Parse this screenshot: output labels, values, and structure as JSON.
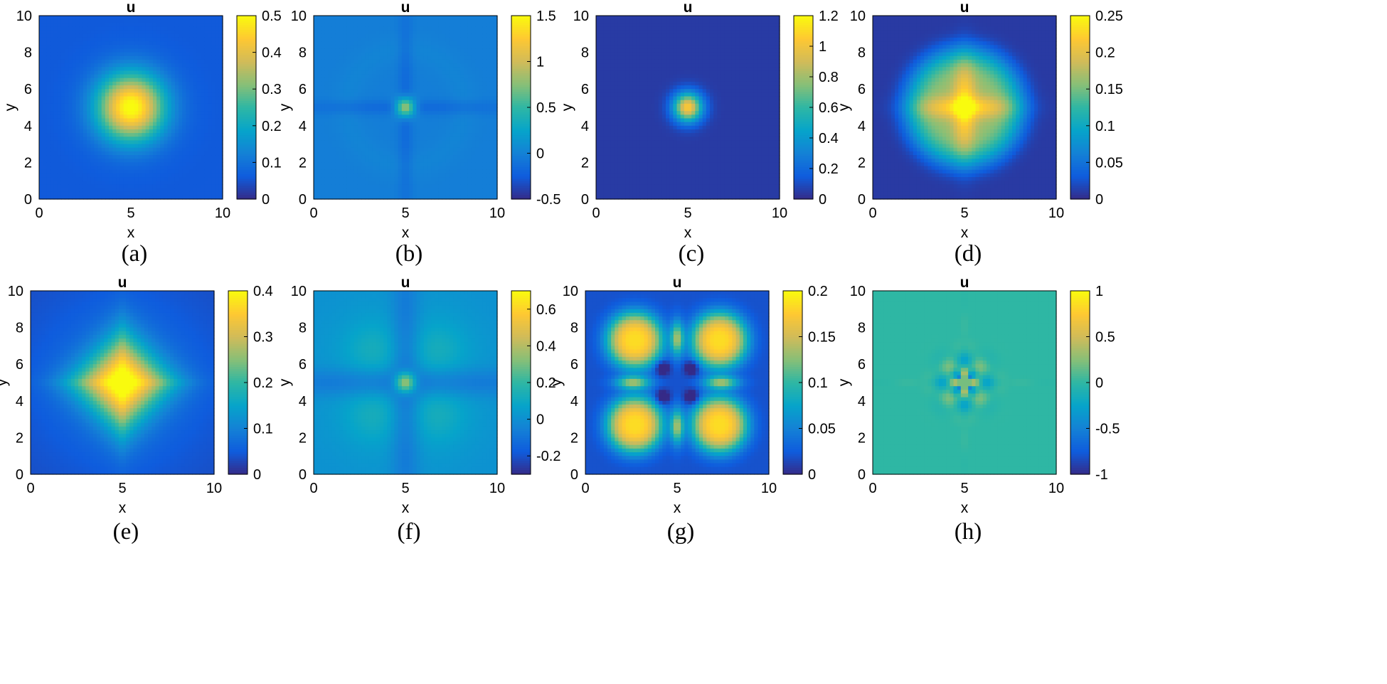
{
  "chart_data": [
    {
      "id": "a",
      "type": "heatmap",
      "pattern": "gaussian",
      "title": "u",
      "xlabel": "x",
      "ylabel": "y",
      "caption": "(a)",
      "xlim": [
        0,
        10
      ],
      "ylim": [
        0,
        10
      ],
      "xticks": [
        "0",
        "5",
        "10"
      ],
      "yticks": [
        "0",
        "2",
        "4",
        "6",
        "8",
        "10"
      ],
      "colorbar": {
        "min": 0,
        "max": 0.5,
        "ticks": [
          "0",
          "0.1",
          "0.2",
          "0.3",
          "0.4",
          "0.5"
        ]
      },
      "background": 0.06,
      "peak": 0.45,
      "width": 1.3
    },
    {
      "id": "b",
      "type": "heatmap",
      "pattern": "cross",
      "title": "u",
      "xlabel": "x",
      "ylabel": "y",
      "caption": "(b)",
      "xlim": [
        0,
        10
      ],
      "ylim": [
        0,
        10
      ],
      "xticks": [
        "0",
        "5",
        "10"
      ],
      "yticks": [
        "0",
        "2",
        "4",
        "6",
        "8",
        "10"
      ],
      "colorbar": {
        "min": -0.5,
        "max": 1.5,
        "ticks": [
          "-0.5",
          "0",
          "0.5",
          "1",
          "1.5"
        ]
      },
      "background": -0.02,
      "peak": 1.1,
      "width": 0.35,
      "cross_depth": -0.28,
      "cross_width": 0.28
    },
    {
      "id": "c",
      "type": "heatmap",
      "pattern": "gaussian",
      "title": "u",
      "xlabel": "x",
      "ylabel": "y",
      "caption": "(c)",
      "xlim": [
        0,
        10
      ],
      "ylim": [
        0,
        10
      ],
      "xticks": [
        "0",
        "5",
        "10"
      ],
      "yticks": [
        "0",
        "2",
        "4",
        "6",
        "8",
        "10"
      ],
      "colorbar": {
        "min": 0,
        "max": 1.2,
        "ticks": [
          "0",
          "0.2",
          "0.4",
          "0.6",
          "0.8",
          "1",
          "1.2"
        ]
      },
      "background": 0.05,
      "peak": 1.0,
      "width": 0.55
    },
    {
      "id": "d",
      "type": "heatmap",
      "pattern": "star",
      "title": "u",
      "xlabel": "x",
      "ylabel": "y",
      "caption": "(d)",
      "xlim": [
        0,
        10
      ],
      "ylim": [
        0,
        10
      ],
      "xticks": [
        "0",
        "5",
        "10"
      ],
      "yticks": [
        "0",
        "2",
        "4",
        "6",
        "8",
        "10"
      ],
      "colorbar": {
        "min": 0,
        "max": 0.25,
        "ticks": [
          "0",
          "0.05",
          "0.1",
          "0.15",
          "0.2",
          "0.25"
        ]
      },
      "background": 0.01,
      "peak": 0.215,
      "width": 3.2
    },
    {
      "id": "e",
      "type": "heatmap",
      "pattern": "diamond",
      "title": "u",
      "xlabel": "x",
      "ylabel": "y",
      "caption": "(e)",
      "xlim": [
        0,
        10
      ],
      "ylim": [
        0,
        10
      ],
      "xticks": [
        "0",
        "5",
        "10"
      ],
      "yticks": [
        "0",
        "2",
        "4",
        "6",
        "8",
        "10"
      ],
      "colorbar": {
        "min": 0,
        "max": 0.4,
        "ticks": [
          "0",
          "0.1",
          "0.2",
          "0.3",
          "0.4"
        ]
      },
      "background": 0.03,
      "peak": 0.36,
      "width": 1.9
    },
    {
      "id": "f",
      "type": "heatmap",
      "pattern": "cross-lobes",
      "title": "u",
      "xlabel": "x",
      "ylabel": "y",
      "caption": "(f)",
      "xlim": [
        0,
        10
      ],
      "ylim": [
        0,
        10
      ],
      "xticks": [
        "0",
        "5",
        "10"
      ],
      "yticks": [
        "0",
        "2",
        "4",
        "6",
        "8",
        "10"
      ],
      "colorbar": {
        "min": -0.3,
        "max": 0.7,
        "ticks": [
          "-0.2",
          "0",
          "0.2",
          "0.4",
          "0.6"
        ]
      },
      "background": 0.0,
      "peak": 0.55,
      "width": 0.4,
      "cross_depth": -0.22,
      "cross_width": 0.55,
      "lobe_value": 0.09
    },
    {
      "id": "g",
      "type": "heatmap",
      "pattern": "four-blobs",
      "title": "u",
      "xlabel": "x",
      "ylabel": "y",
      "caption": "(g)",
      "xlim": [
        0,
        10
      ],
      "ylim": [
        0,
        10
      ],
      "xticks": [
        "0",
        "5",
        "10"
      ],
      "yticks": [
        "0",
        "2",
        "4",
        "6",
        "8",
        "10"
      ],
      "colorbar": {
        "min": 0,
        "max": 0.2,
        "ticks": [
          "0",
          "0.05",
          "0.1",
          "0.15",
          "0.2"
        ]
      },
      "background": 0.02,
      "peak": 0.165,
      "width": 1.55,
      "blob_centers": [
        [
          2.7,
          2.7
        ],
        [
          7.3,
          2.7
        ],
        [
          2.7,
          7.3
        ],
        [
          7.3,
          7.3
        ]
      ]
    },
    {
      "id": "h",
      "type": "heatmap",
      "pattern": "oscillatory",
      "title": "u",
      "xlabel": "x",
      "ylabel": "y",
      "caption": "(h)",
      "xlim": [
        0,
        10
      ],
      "ylim": [
        0,
        10
      ],
      "xticks": [
        "0",
        "5",
        "10"
      ],
      "yticks": [
        "0",
        "2",
        "4",
        "6",
        "8",
        "10"
      ],
      "colorbar": {
        "min": -1,
        "max": 1,
        "ticks": [
          "-1",
          "-0.5",
          "0",
          "0.5",
          "1"
        ]
      },
      "background": 0.0,
      "peak": 0.6,
      "width": 0.5
    }
  ],
  "colormap": [
    "#352a87",
    "#0f5cdd",
    "#1481d6",
    "#06a4ca",
    "#2eb7a4",
    "#87bf77",
    "#d1bb59",
    "#fec832",
    "#f9fb0e"
  ]
}
